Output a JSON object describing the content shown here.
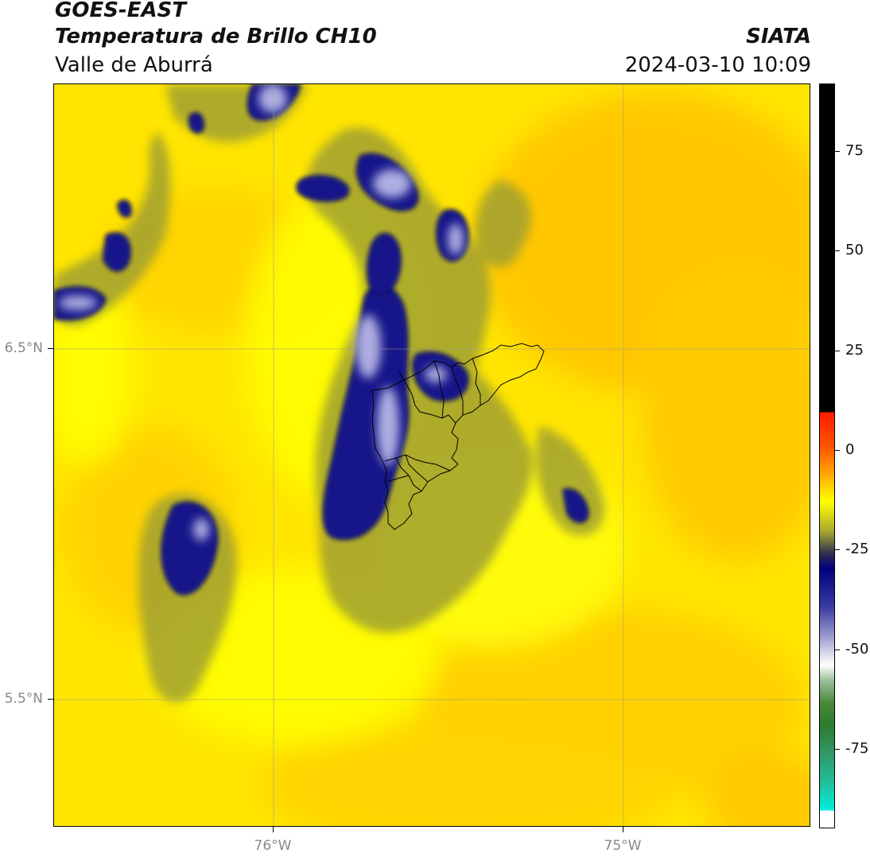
{
  "header": {
    "satellite": "GOES-EAST",
    "product": "Temperatura de Brillo CH10",
    "region": "Valle de Aburrá",
    "agency": "SIATA",
    "datetime": "2024-03-10 10:09"
  },
  "map": {
    "latitude_labels": [
      "6.5°N",
      "5.5°N"
    ],
    "longitude_labels": [
      "76°W",
      "75°W"
    ],
    "gridlines": true,
    "overlay": "Valle de Aburrá municipal boundaries"
  },
  "colorbar": {
    "tick_labels": [
      "75",
      "50",
      "25",
      "0",
      "-25",
      "-50",
      "-75"
    ],
    "tick_values": [
      75,
      50,
      25,
      0,
      -25,
      -50,
      -75
    ],
    "range": [
      -95,
      92
    ],
    "colors": {
      "black": "#000000",
      "red": "#ff2200",
      "orange": "#ff8800",
      "yellow": "#ffff00",
      "olive": "#888833",
      "navy": "#000080",
      "lavender": "#b0b0e0",
      "white": "#ffffff",
      "green": "#2e7d32",
      "cyan": "#00e5e5"
    }
  },
  "colors": {
    "background_yellow": "#ffe600",
    "background_orange": "#ffcc00",
    "cloud_navy": "#16168a",
    "cloud_light": "#b8b8e8",
    "cloud_olive": "#9a9a30"
  }
}
